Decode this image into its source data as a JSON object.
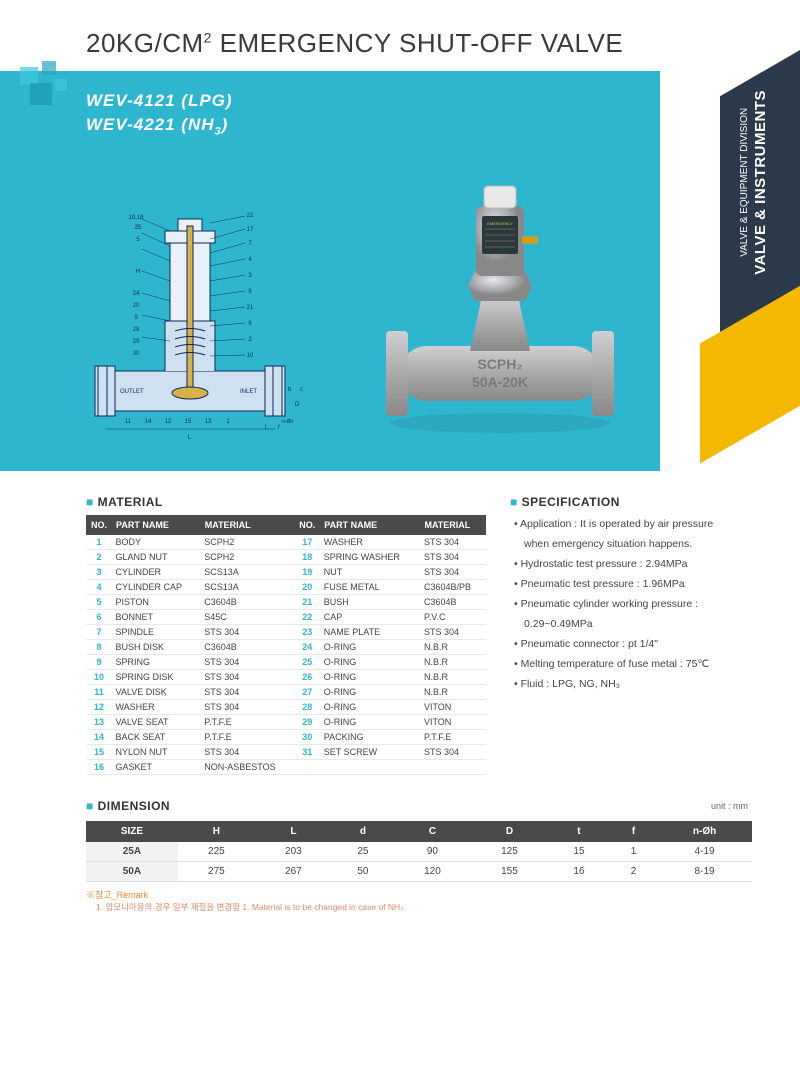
{
  "title_prefix": "20KG/CM",
  "title_sup": "2",
  "title_suffix": " EMERGENCY SHUT-OFF VALVE",
  "models": {
    "line1": "WEV-4121 (LPG)",
    "line2_a": "WEV-4221 (NH",
    "line2_sub": "3",
    "line2_b": ")"
  },
  "sidebar": {
    "small": "VALVE & EQUIPMENT DIVISION",
    "big": "VALVE & INSTRUMENTS"
  },
  "sections": {
    "material": "MATERIAL",
    "specification": "SPECIFICATION",
    "dimension": "DIMENSION"
  },
  "material": {
    "headers": {
      "no": "NO.",
      "part": "PART NAME",
      "mat": "MATERIAL"
    },
    "left": [
      {
        "no": "1",
        "part": "BODY",
        "mat": "SCPH2"
      },
      {
        "no": "2",
        "part": "GLAND NUT",
        "mat": "SCPH2"
      },
      {
        "no": "3",
        "part": "CYLINDER",
        "mat": "SCS13A"
      },
      {
        "no": "4",
        "part": "CYLINDER CAP",
        "mat": "SCS13A"
      },
      {
        "no": "5",
        "part": "PISTON",
        "mat": "C3604B"
      },
      {
        "no": "6",
        "part": "BONNET",
        "mat": "S45C"
      },
      {
        "no": "7",
        "part": "SPINDLE",
        "mat": "STS 304"
      },
      {
        "no": "8",
        "part": "BUSH DISK",
        "mat": "C3604B"
      },
      {
        "no": "9",
        "part": "SPRING",
        "mat": "STS 304"
      },
      {
        "no": "10",
        "part": "SPRING DISK",
        "mat": "STS 304"
      },
      {
        "no": "11",
        "part": "VALVE DISK",
        "mat": "STS 304"
      },
      {
        "no": "12",
        "part": "WASHER",
        "mat": "STS 304"
      },
      {
        "no": "13",
        "part": "VALVE SEAT",
        "mat": "P.T.F.E"
      },
      {
        "no": "14",
        "part": "BACK SEAT",
        "mat": "P.T.F.E"
      },
      {
        "no": "15",
        "part": "NYLON NUT",
        "mat": "STS 304"
      },
      {
        "no": "16",
        "part": "GASKET",
        "mat": "NON-ASBESTOS"
      }
    ],
    "right": [
      {
        "no": "17",
        "part": "WASHER",
        "mat": "STS 304"
      },
      {
        "no": "18",
        "part": "SPRING WASHER",
        "mat": "STS 304"
      },
      {
        "no": "19",
        "part": "NUT",
        "mat": "STS 304"
      },
      {
        "no": "20",
        "part": "FUSE METAL",
        "mat": "C3604B/PB"
      },
      {
        "no": "21",
        "part": "BUSH",
        "mat": "C3604B"
      },
      {
        "no": "22",
        "part": "CAP",
        "mat": "P.V.C"
      },
      {
        "no": "23",
        "part": "NAME PLATE",
        "mat": "STS 304"
      },
      {
        "no": "24",
        "part": "O-RING",
        "mat": "N.B.R"
      },
      {
        "no": "25",
        "part": "O-RING",
        "mat": "N.B.R"
      },
      {
        "no": "26",
        "part": "O-RING",
        "mat": "N.B.R"
      },
      {
        "no": "27",
        "part": "O-RING",
        "mat": "N.B.R"
      },
      {
        "no": "28",
        "part": "O-RING",
        "mat": "VITON"
      },
      {
        "no": "29",
        "part": "O-RING",
        "mat": "VITON"
      },
      {
        "no": "30",
        "part": "PACKING",
        "mat": "P.T.F.E"
      },
      {
        "no": "31",
        "part": "SET SCREW",
        "mat": "STS 304"
      }
    ]
  },
  "specification": [
    "Application : It is operated by air pressure",
    "  when emergency situation happens.",
    "Hydrostatic test pressure : 2.94MPa",
    "Pneumatic test pressure : 1.96MPa",
    "Pneumatic cylinder working pressure :",
    "  0.29~0.49MPa",
    "Pneumatic connector : pt 1/4\"",
    "Melting temperature of fuse metal : 75℃",
    "Fluid : LPG, NG, NH₃"
  ],
  "dimension": {
    "unit": "unit : mm",
    "headers": [
      "SIZE",
      "H",
      "L",
      "d",
      "C",
      "D",
      "t",
      "f",
      "n-Øh"
    ],
    "rows": [
      [
        "25A",
        "225",
        "203",
        "25",
        "90",
        "125",
        "15",
        "1",
        "4-19"
      ],
      [
        "50A",
        "275",
        "267",
        "50",
        "120",
        "155",
        "16",
        "2",
        "8-19"
      ]
    ]
  },
  "remark": {
    "label": "※참고_Remark",
    "note": "1. 암모니아용의 경우 일부 재질을 변경함    1. Material is to be changed in case of  NH₃"
  },
  "colors": {
    "hero_bg": "#2fb6cf",
    "accent": "#2fb6cf",
    "table_header": "#4a4a4a",
    "sidebar_dark": "#2a3a4a",
    "sidebar_yellow": "#f5b800"
  },
  "photo_label": {
    "line1": "SCPH₂",
    "line2": "50A-20K"
  }
}
